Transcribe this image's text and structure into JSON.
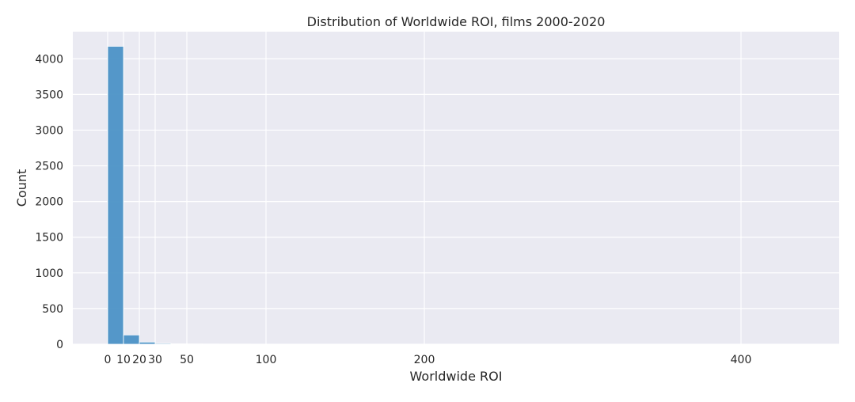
{
  "chart_data": {
    "type": "bar",
    "title": "Distribution of Worldwide ROI, films 2000-2020",
    "xlabel": "Worldwide ROI",
    "ylabel": "Count",
    "x_ticks": [
      0,
      10,
      20,
      30,
      50,
      100,
      200,
      400
    ],
    "y_ticks": [
      0,
      500,
      1000,
      1500,
      2000,
      2500,
      3000,
      3500,
      4000
    ],
    "xlim": [
      -22,
      462
    ],
    "ylim": [
      0,
      4380
    ],
    "bin_width": 10,
    "bin_starts": [
      0,
      10,
      20,
      30,
      40,
      50,
      60,
      70,
      80,
      90,
      100,
      110,
      120,
      130,
      140,
      150,
      160,
      170,
      180,
      190,
      200,
      210,
      220,
      230,
      240,
      250,
      260,
      270,
      280,
      290,
      300,
      310,
      320,
      330,
      340,
      350,
      360,
      370,
      380,
      390,
      400,
      410,
      420,
      430,
      440,
      450
    ],
    "values": [
      4175,
      130,
      30,
      12,
      6,
      4,
      3,
      2,
      2,
      1,
      1,
      1,
      1,
      0,
      0,
      0,
      0,
      0,
      0,
      0,
      1,
      0,
      0,
      0,
      0,
      0,
      0,
      0,
      0,
      0,
      0,
      0,
      0,
      0,
      0,
      0,
      0,
      0,
      0,
      0,
      0,
      0,
      0,
      0,
      0,
      1
    ],
    "bar_color": "#4c92c6",
    "background_color": "#eaeaf2",
    "grid": true,
    "grid_color": "#ffffff"
  }
}
